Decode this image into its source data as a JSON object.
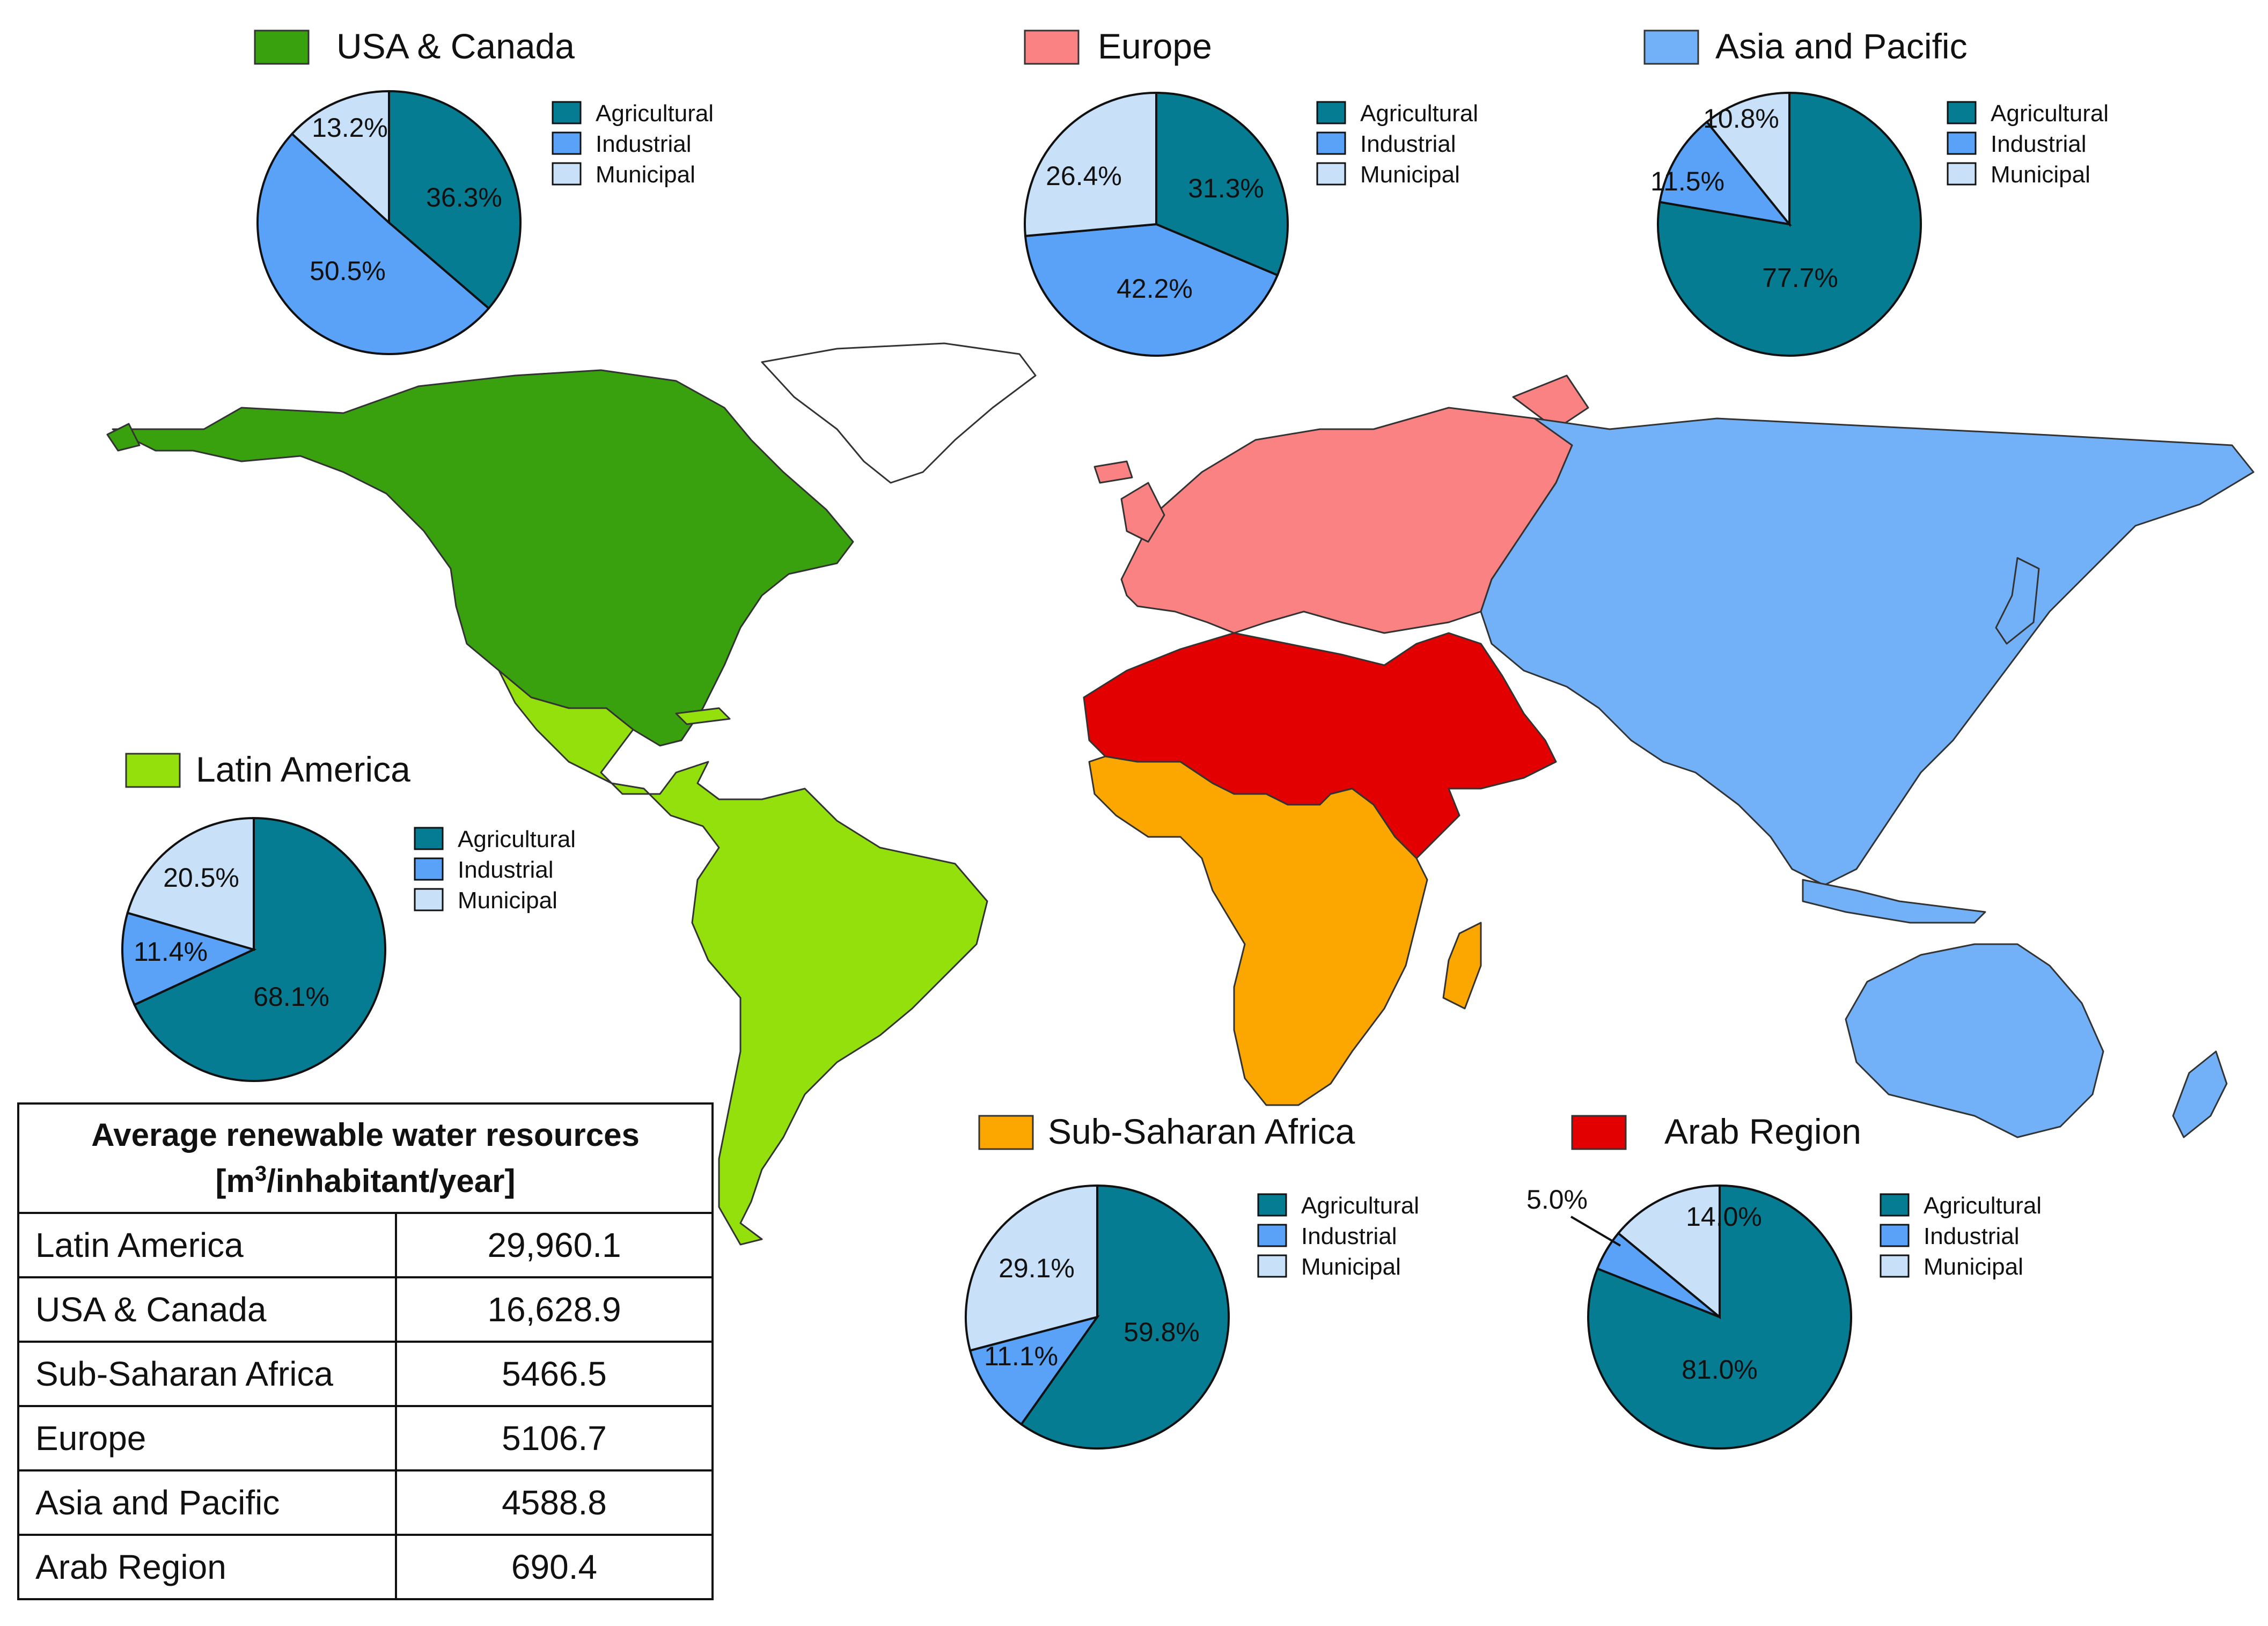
{
  "colors": {
    "usa_canada": "#3aa10e",
    "europe": "#fa8282",
    "asia_pacific": "#72b0f8",
    "latin_america": "#93e00c",
    "sub_saharan_africa": "#fca600",
    "arab_region": "#e20000",
    "agricultural": "#067c93",
    "industrial": "#5aa2f8",
    "municipal": "#c8e0f8",
    "border": "#333333"
  },
  "chart_data": [
    {
      "type": "pie",
      "region": "USA & Canada",
      "color": "#3aa10e",
      "slices": [
        {
          "name": "Agricultural",
          "value": 36.3,
          "label": "36.3%"
        },
        {
          "name": "Industrial",
          "value": 50.5,
          "label": "50.5%"
        },
        {
          "name": "Municipal",
          "value": 13.2,
          "label": "13.2%"
        }
      ]
    },
    {
      "type": "pie",
      "region": "Europe",
      "color": "#fa8282",
      "slices": [
        {
          "name": "Agricultural",
          "value": 31.3,
          "label": "31.3%"
        },
        {
          "name": "Industrial",
          "value": 42.2,
          "label": "42.2%"
        },
        {
          "name": "Municipal",
          "value": 26.4,
          "label": "26.4%"
        }
      ]
    },
    {
      "type": "pie",
      "region": "Asia and Pacific",
      "color": "#72b0f8",
      "slices": [
        {
          "name": "Agricultural",
          "value": 77.7,
          "label": "77.7%"
        },
        {
          "name": "Industrial",
          "value": 11.5,
          "label": "11.5%"
        },
        {
          "name": "Municipal",
          "value": 10.8,
          "label": "10.8%"
        }
      ]
    },
    {
      "type": "pie",
      "region": "Latin America",
      "color": "#93e00c",
      "slices": [
        {
          "name": "Agricultural",
          "value": 68.1,
          "label": "68.1%"
        },
        {
          "name": "Industrial",
          "value": 11.4,
          "label": "11.4%"
        },
        {
          "name": "Municipal",
          "value": 20.5,
          "label": "20.5%"
        }
      ]
    },
    {
      "type": "pie",
      "region": "Sub-Saharan Africa",
      "color": "#fca600",
      "slices": [
        {
          "name": "Agricultural",
          "value": 59.8,
          "label": "59.8%"
        },
        {
          "name": "Industrial",
          "value": 11.1,
          "label": "11.1%"
        },
        {
          "name": "Municipal",
          "value": 29.1,
          "label": "29.1%"
        }
      ]
    },
    {
      "type": "pie",
      "region": "Arab Region",
      "color": "#e20000",
      "slices": [
        {
          "name": "Agricultural",
          "value": 81.0,
          "label": "81.0%"
        },
        {
          "name": "Industrial",
          "value": 5.0,
          "label": "5.0%"
        },
        {
          "name": "Municipal",
          "value": 14.0,
          "label": "14.0%"
        }
      ]
    }
  ],
  "legend": [
    "Agricultural",
    "Industrial",
    "Municipal"
  ],
  "table": {
    "header_line1": "Average renewable water resources",
    "header_unit_open": "[m",
    "header_unit_sup": "3",
    "header_unit_close": "/inhabitant/year]",
    "rows": [
      {
        "region": "Latin America",
        "value": "29,960.1"
      },
      {
        "region": "USA & Canada",
        "value": "16,628.9"
      },
      {
        "region": "Sub-Saharan Africa",
        "value": "5466.5"
      },
      {
        "region": "Europe",
        "value": "5106.7"
      },
      {
        "region": "Asia and Pacific",
        "value": "4588.8"
      },
      {
        "region": "Arab Region",
        "value": "690.4"
      }
    ]
  }
}
